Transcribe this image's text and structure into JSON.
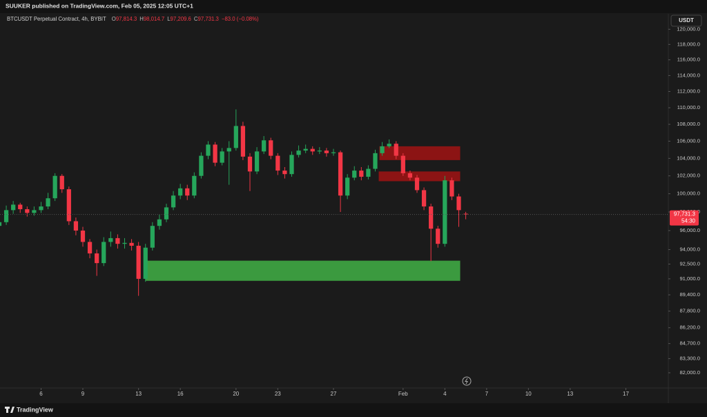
{
  "header": {
    "text": "SUUKER published on TradingView.com, Feb 05, 2025 12:05 UTC+1"
  },
  "footer": {
    "brand": "TradingView"
  },
  "chart_data": {
    "type": "candlestick",
    "symbol": "BTCUSDT Perpetual Contract, 4h, BYBIT",
    "ohlc_legend": [
      {
        "prefix": "O",
        "text": "97,814.3"
      },
      {
        "prefix": "H",
        "text": "98,014.7"
      },
      {
        "prefix": "L",
        "text": "97,209.6"
      },
      {
        "prefix": "C",
        "text": "97,731.3"
      }
    ],
    "change": "−83.0 (−0.08%)",
    "currency": "USDT",
    "last_price": {
      "value": 97731.3,
      "label": "97,731.3"
    },
    "countdown": "54:30",
    "log_scale": true,
    "up_color": "#26a65b",
    "down_color": "#f23645",
    "x": [
      3,
      3.5,
      4,
      4.5,
      5,
      5.5,
      6,
      6.5,
      7,
      7.5,
      8,
      8.5,
      9,
      9.5,
      10,
      10.5,
      11,
      11.5,
      12,
      12.5,
      13,
      13.5,
      14,
      14.5,
      15,
      15.5,
      16,
      16.5,
      17,
      17.5,
      18,
      18.5,
      19,
      19.5,
      20,
      20.5,
      21,
      21.5,
      22,
      22.5,
      23,
      23.5,
      24,
      24.5,
      25,
      25.5,
      26,
      26.5,
      27,
      27.5,
      28,
      28.5,
      29,
      29.5,
      30,
      30.5,
      31,
      31.5,
      32,
      32.5,
      33,
      33.5,
      34,
      34.5,
      35,
      35.5,
      36,
      36.5
    ],
    "open": [
      96500,
      96900,
      98200,
      98800,
      98300,
      97900,
      98200,
      98600,
      99500,
      102000,
      100500,
      97000,
      96000,
      94800,
      93600,
      92600,
      94800,
      95200,
      94600,
      94700,
      94400,
      91000,
      94200,
      96500,
      97200,
      98500,
      99800,
      100600,
      99800,
      102000,
      104300,
      105600,
      103500,
      104800,
      105200,
      107800,
      104200,
      102500,
      104800,
      106100,
      104300,
      102600,
      102200,
      104400,
      104900,
      105100,
      104800,
      104900,
      104600,
      104700,
      99800,
      101800,
      102600,
      101900,
      102800,
      104600,
      105400,
      105700,
      104300,
      102300,
      101800,
      100400,
      98600,
      96200,
      94600,
      101500,
      99700,
      97814.3
    ],
    "high": [
      97400,
      98700,
      99200,
      99000,
      98600,
      98600,
      99100,
      100100,
      102300,
      102200,
      100800,
      97400,
      96400,
      95100,
      94000,
      95300,
      95900,
      95600,
      95200,
      95100,
      94800,
      94600,
      96900,
      97700,
      98900,
      100300,
      101100,
      101000,
      102400,
      104700,
      106000,
      105900,
      105200,
      106000,
      109800,
      108300,
      104600,
      105300,
      106600,
      106400,
      104600,
      103000,
      104800,
      105500,
      105600,
      105400,
      105300,
      105200,
      105100,
      104900,
      102200,
      103100,
      103000,
      103200,
      105000,
      105900,
      106200,
      106000,
      104600,
      102600,
      102100,
      100700,
      98900,
      96500,
      102000,
      101800,
      100000,
      98014.7
    ],
    "low": [
      96000,
      96600,
      97800,
      97900,
      97500,
      97600,
      97900,
      98300,
      99200,
      100100,
      96600,
      95500,
      94300,
      93100,
      91300,
      92300,
      94300,
      94100,
      94100,
      93900,
      89300,
      90700,
      93900,
      96100,
      96900,
      98200,
      99400,
      99300,
      99500,
      101700,
      103900,
      103100,
      103200,
      101000,
      104900,
      103800,
      100300,
      102200,
      104500,
      103900,
      102100,
      101700,
      101900,
      104100,
      104600,
      104400,
      104500,
      104200,
      104300,
      98000,
      99400,
      101500,
      101500,
      101600,
      102500,
      104300,
      105200,
      103900,
      102000,
      101500,
      100100,
      98200,
      92800,
      94200,
      94300,
      99300,
      96400,
      97209.6
    ],
    "close": [
      96900,
      98200,
      98800,
      98300,
      97900,
      98200,
      98600,
      99500,
      102000,
      100500,
      97000,
      96000,
      94800,
      93600,
      92600,
      94800,
      95200,
      94600,
      94700,
      94400,
      91000,
      94200,
      96500,
      97200,
      98500,
      99800,
      100600,
      99800,
      102000,
      104300,
      105600,
      103500,
      104800,
      105200,
      107800,
      104200,
      102500,
      104800,
      106100,
      104300,
      102600,
      102200,
      104400,
      104900,
      105100,
      104800,
      104900,
      104600,
      104700,
      99800,
      101800,
      102600,
      101900,
      102800,
      104600,
      105400,
      105700,
      104300,
      102300,
      101800,
      100400,
      98600,
      96200,
      94600,
      101500,
      99700,
      98200,
      97731.3
    ],
    "zones": [
      {
        "color": "#8c1414",
        "x": [
          30.3,
          36.1
        ],
        "y": [
          103800,
          105400
        ]
      },
      {
        "color": "#8c1414",
        "x": [
          30.25,
          36.1
        ],
        "y": [
          101400,
          102500
        ]
      },
      {
        "color": "#3b9a3f",
        "x": [
          13.5,
          36.1
        ],
        "y": [
          90800,
          92850
        ]
      }
    ],
    "xlim": [
      3.05,
      51.05
    ],
    "ylim": [
      80630,
      122070
    ],
    "xticks": [
      6,
      9,
      13,
      16,
      20,
      23,
      27,
      {
        "value": 32,
        "label": "Feb"
      },
      {
        "value": 35,
        "label": "4"
      },
      {
        "value": 38,
        "label": "7"
      },
      {
        "value": 41,
        "label": "10"
      },
      {
        "value": 44,
        "label": "13"
      },
      {
        "value": 48,
        "label": "17"
      }
    ],
    "yticks": [
      {
        "value": 120000,
        "label": "120,000.0"
      },
      {
        "value": 118000,
        "label": "118,000.0"
      },
      {
        "value": 116000,
        "label": "116,000.0"
      },
      {
        "value": 114000,
        "label": "114,000.0"
      },
      {
        "value": 112000,
        "label": "112,000.0"
      },
      {
        "value": 110000,
        "label": "110,000.0"
      },
      {
        "value": 108000,
        "label": "108,000.0"
      },
      {
        "value": 106000,
        "label": "106,000.0"
      },
      {
        "value": 104000,
        "label": "104,000.0"
      },
      {
        "value": 102000,
        "label": "102,000.0"
      },
      {
        "value": 100000,
        "label": "100,000.0"
      },
      {
        "value": 98000,
        "label": "98,000.0"
      },
      {
        "value": 96000,
        "label": "96,000.0"
      },
      {
        "value": 94000,
        "label": "94,000.0"
      },
      {
        "value": 92500,
        "label": "92,500.0"
      },
      {
        "value": 91000,
        "label": "91,000.0"
      },
      {
        "value": 89400,
        "label": "89,400.0"
      },
      {
        "value": 87800,
        "label": "87,800.0"
      },
      {
        "value": 86200,
        "label": "86,200.0"
      },
      {
        "value": 84700,
        "label": "84,700.0"
      },
      {
        "value": 83300,
        "label": "83,300.0"
      },
      {
        "value": 82000,
        "label": "82,000.0"
      }
    ]
  }
}
